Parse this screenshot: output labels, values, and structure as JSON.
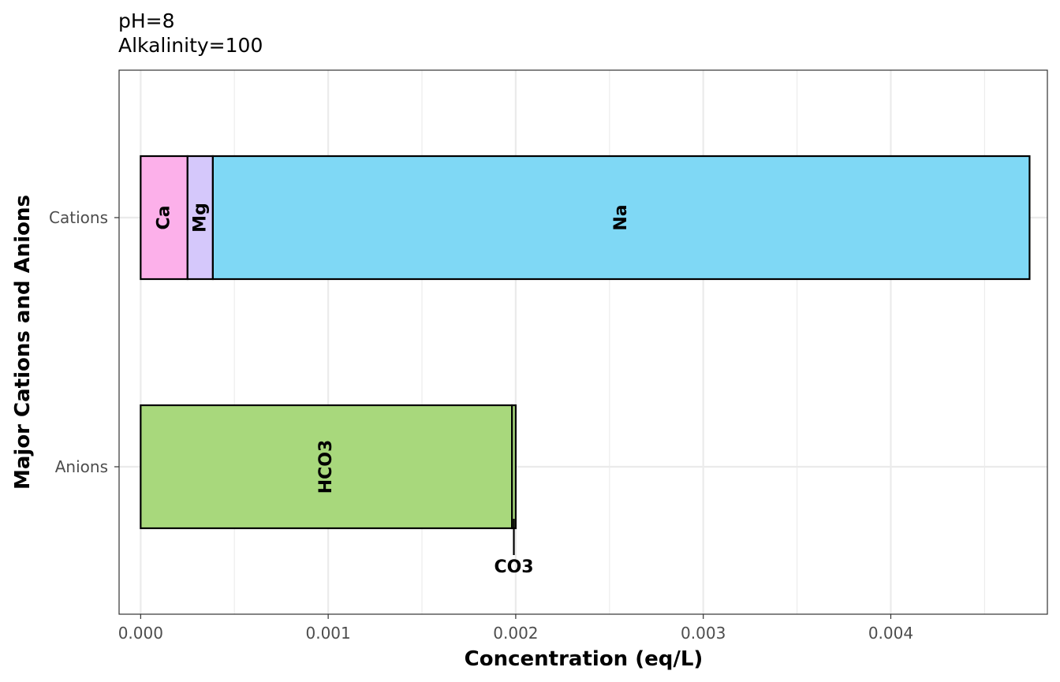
{
  "chart_data": {
    "type": "bar",
    "orientation": "horizontal",
    "stacked": true,
    "title_lines": [
      "pH=8",
      "Alkalinity=100"
    ],
    "xlabel": "Concentration (eq/L)",
    "ylabel": "Major Cations and Anions",
    "categories": [
      "Cations",
      "Anions"
    ],
    "xlim": [
      -0.000115,
      0.004835
    ],
    "x_ticks": [
      0.0,
      0.001,
      0.002,
      0.003,
      0.004
    ],
    "x_tick_labels": [
      "0.000",
      "0.001",
      "0.002",
      "0.003",
      "0.004"
    ],
    "grid": true,
    "series": [
      {
        "name": "Ca",
        "category": "Cations",
        "start": 0.0,
        "value": 0.00025,
        "color": "#fcb0ea",
        "label_style": "inside-vertical"
      },
      {
        "name": "Mg",
        "category": "Cations",
        "start": 0.00025,
        "value": 0.000135,
        "color": "#d5c8fb",
        "label_style": "inside-vertical"
      },
      {
        "name": "Na",
        "category": "Cations",
        "start": 0.000385,
        "value": 0.004355,
        "color": "#7fd8f5",
        "label_style": "inside-vertical"
      },
      {
        "name": "HCO3",
        "category": "Anions",
        "start": 0.0,
        "value": 0.00198,
        "color": "#a8d87c",
        "label_style": "inside-vertical"
      },
      {
        "name": "CO3",
        "category": "Anions",
        "start": 0.00198,
        "value": 2e-05,
        "color": "#a8d87c",
        "label_style": "callout-below"
      }
    ]
  }
}
